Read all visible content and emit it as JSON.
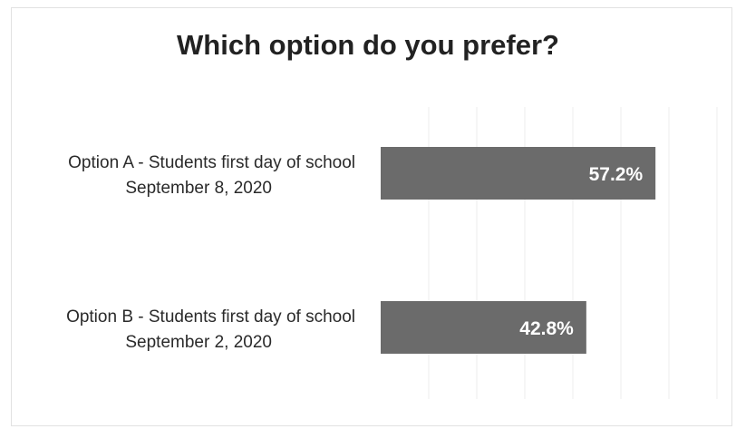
{
  "chart_data": {
    "type": "bar",
    "orientation": "horizontal",
    "title": "Which option do you prefer?",
    "categories": [
      {
        "line1": "Option A - Students first day of school",
        "line2": "September 8, 2020"
      },
      {
        "line1": "Option B - Students first day of school",
        "line2": "September 2, 2020"
      }
    ],
    "values": [
      57.2,
      42.8
    ],
    "data_labels": [
      "57.2%",
      "42.8%"
    ],
    "xlim": [
      0,
      100
    ],
    "grid": true,
    "legend": "none",
    "colors": {
      "bar": "#6b6b6b",
      "gridline": "#ededed",
      "label": "#ffffff"
    }
  }
}
